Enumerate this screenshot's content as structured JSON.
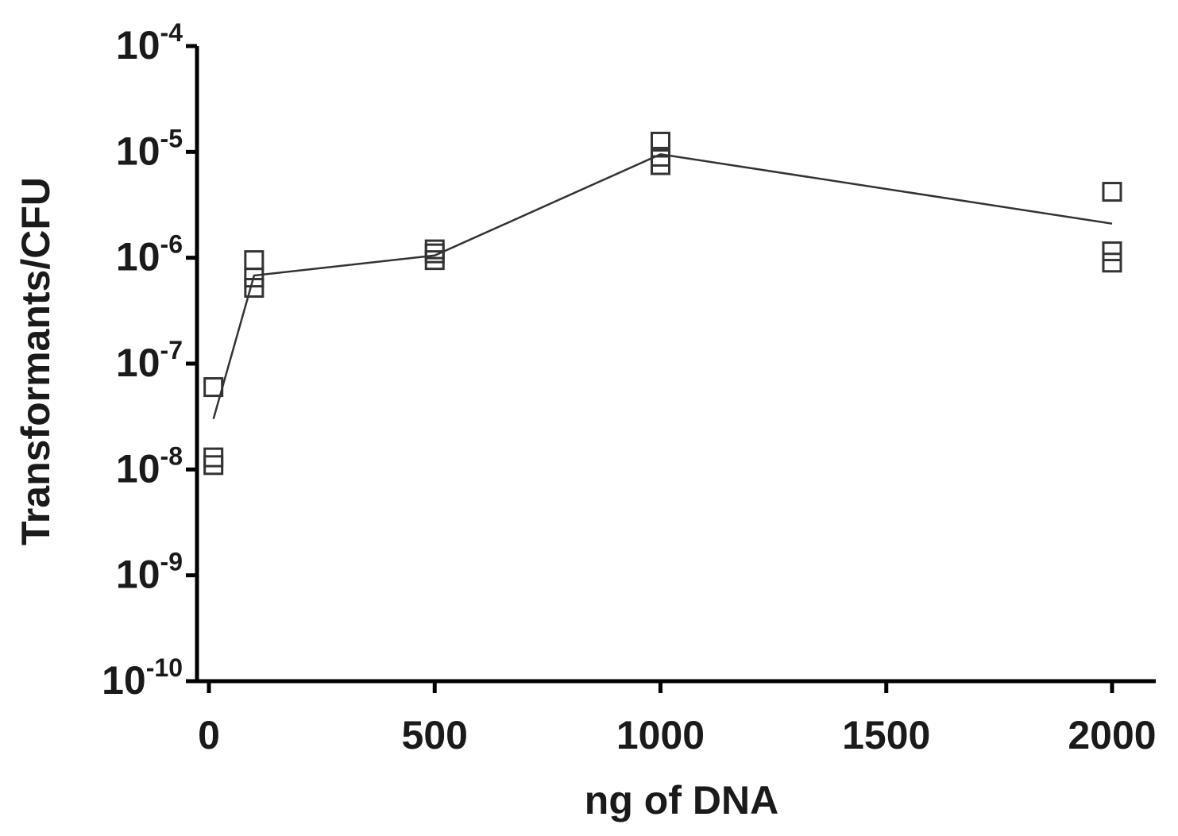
{
  "chart_data": {
    "type": "scatter",
    "title": "",
    "xlabel": "ng of DNA",
    "ylabel": "Transformants/CFU",
    "x_ticks": [
      0,
      500,
      1000,
      1500,
      2000
    ],
    "xlim": [
      0,
      2000
    ],
    "y_scale": "log",
    "ylim": [
      1e-10,
      0.0001
    ],
    "y_ticks": [
      {
        "value": 0.0001,
        "base": "10",
        "exp": "-4"
      },
      {
        "value": 1e-05,
        "base": "10",
        "exp": "-5"
      },
      {
        "value": 1e-06,
        "base": "10",
        "exp": "-6"
      },
      {
        "value": 1e-07,
        "base": "10",
        "exp": "-7"
      },
      {
        "value": 1e-08,
        "base": "10",
        "exp": "-8"
      },
      {
        "value": 1e-09,
        "base": "10",
        "exp": "-9"
      },
      {
        "value": 1e-10,
        "base": "10",
        "exp": "-10"
      }
    ],
    "grid": false,
    "legend": false,
    "marker": "open-square",
    "points": [
      {
        "x": 10,
        "y": 6e-08
      },
      {
        "x": 10,
        "y": 1.3e-08
      },
      {
        "x": 10,
        "y": 1.1e-08
      },
      {
        "x": 100,
        "y": 9.5e-07
      },
      {
        "x": 100,
        "y": 6.5e-07
      },
      {
        "x": 100,
        "y": 5.2e-07
      },
      {
        "x": 500,
        "y": 1.2e-06
      },
      {
        "x": 500,
        "y": 1.1e-06
      },
      {
        "x": 500,
        "y": 9.5e-07
      },
      {
        "x": 1000,
        "y": 1.25e-05
      },
      {
        "x": 1000,
        "y": 9e-06
      },
      {
        "x": 1000,
        "y": 7.5e-06
      },
      {
        "x": 2000,
        "y": 4.2e-06
      },
      {
        "x": 2000,
        "y": 1.15e-06
      },
      {
        "x": 2000,
        "y": 9e-07
      }
    ],
    "mean_line": {
      "x": [
        10,
        100,
        500,
        1000,
        2000
      ],
      "y": [
        3e-08,
        6.8e-07,
        1.05e-06,
        9.5e-06,
        2.1e-06
      ]
    },
    "colors": {
      "axis": "#000000",
      "line": "#333333",
      "marker": "#333333",
      "background": "#ffffff"
    }
  }
}
